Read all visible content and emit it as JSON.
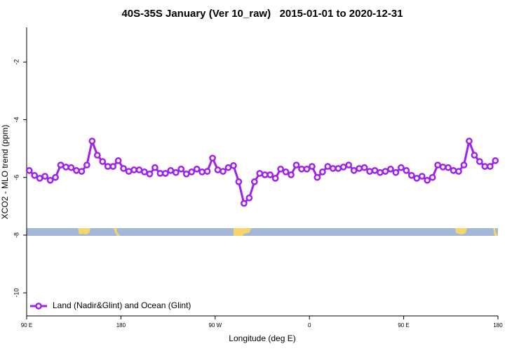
{
  "chart_data": {
    "type": "line",
    "title": "40S-35S January (Ver 10_raw)   2015-01-01 to 2020-12-31",
    "x_label": "Longitude (deg E)",
    "y_label": "XCO2 - MLO trend (ppm)",
    "xlim": [
      90,
      540
    ],
    "xticks": [
      {
        "value": 90,
        "label": "90 E"
      },
      180,
      {
        "value": 270,
        "label": "90 W"
      },
      {
        "value": 360,
        "label": "0"
      },
      {
        "value": 450,
        "label": "90 E"
      },
      {
        "value": 540,
        "label": "180"
      }
    ],
    "ylim": [
      -10.8,
      -0.8
    ],
    "yticks": [
      -10,
      -8,
      -6,
      -4,
      -2
    ],
    "legend": "bottom-left",
    "series": [
      {
        "name": "Land (Nadir&Glint) and Ocean (Glint)",
        "color": "#a020f0",
        "x": [
          92.5,
          97.5,
          102.5,
          107.5,
          112.5,
          117.5,
          122.5,
          127.5,
          132.5,
          137.5,
          142.5,
          147.5,
          152.5,
          157.5,
          162.5,
          167.5,
          172.5,
          177.5,
          182.5,
          187.5,
          192.5,
          197.5,
          202.5,
          207.5,
          212.5,
          217.5,
          222.5,
          227.5,
          232.5,
          237.5,
          242.5,
          247.5,
          252.5,
          257.5,
          262.5,
          267.5,
          272.5,
          277.5,
          282.5,
          287.5,
          292.5,
          297.5,
          302.5,
          307.5,
          312.5,
          317.5,
          322.5,
          327.5,
          332.5,
          337.5,
          342.5,
          347.5,
          352.5,
          357.5,
          362.5,
          367.5,
          372.5,
          377.5,
          382.5,
          387.5,
          392.5,
          397.5,
          402.5,
          407.5,
          412.5,
          417.5,
          422.5,
          427.5,
          432.5,
          437.5,
          442.5,
          447.5,
          452.5,
          457.5,
          462.5,
          467.5,
          472.5,
          477.5,
          482.5,
          487.5,
          492.5,
          497.5,
          502.5,
          507.5,
          512.5,
          517.5,
          522.5,
          527.5,
          532.5,
          537.5
        ],
        "values": [
          -5.76,
          -5.93,
          -6.03,
          -5.96,
          -6.1,
          -6.0,
          -5.57,
          -5.64,
          -5.66,
          -5.76,
          -5.79,
          -5.57,
          -4.74,
          -5.23,
          -5.45,
          -5.62,
          -5.62,
          -5.42,
          -5.69,
          -5.79,
          -5.74,
          -5.74,
          -5.81,
          -5.88,
          -5.66,
          -5.86,
          -5.86,
          -5.76,
          -5.83,
          -5.71,
          -5.88,
          -5.81,
          -5.71,
          -5.81,
          -5.79,
          -5.33,
          -5.74,
          -5.79,
          -5.66,
          -5.59,
          -6.15,
          -6.9,
          -6.71,
          -6.15,
          -5.86,
          -5.91,
          -5.91,
          -6.03,
          -5.71,
          -5.81,
          -5.91,
          -5.57,
          -5.71,
          -5.71,
          -5.62,
          -6.0,
          -5.81,
          -5.62,
          -5.69,
          -5.69,
          -5.64,
          -5.57,
          -5.76,
          -5.69,
          -5.66,
          -5.79,
          -5.76,
          -5.83,
          -5.79,
          -5.71,
          -5.83,
          -5.66,
          -5.76,
          -5.93,
          -6.03,
          -5.96,
          -6.1,
          -6.0,
          -5.57,
          -5.64,
          -5.66,
          -5.76,
          -5.79,
          -5.57,
          -4.74,
          -5.23,
          -5.45,
          -5.62,
          -5.62,
          -5.42
        ]
      }
    ]
  }
}
